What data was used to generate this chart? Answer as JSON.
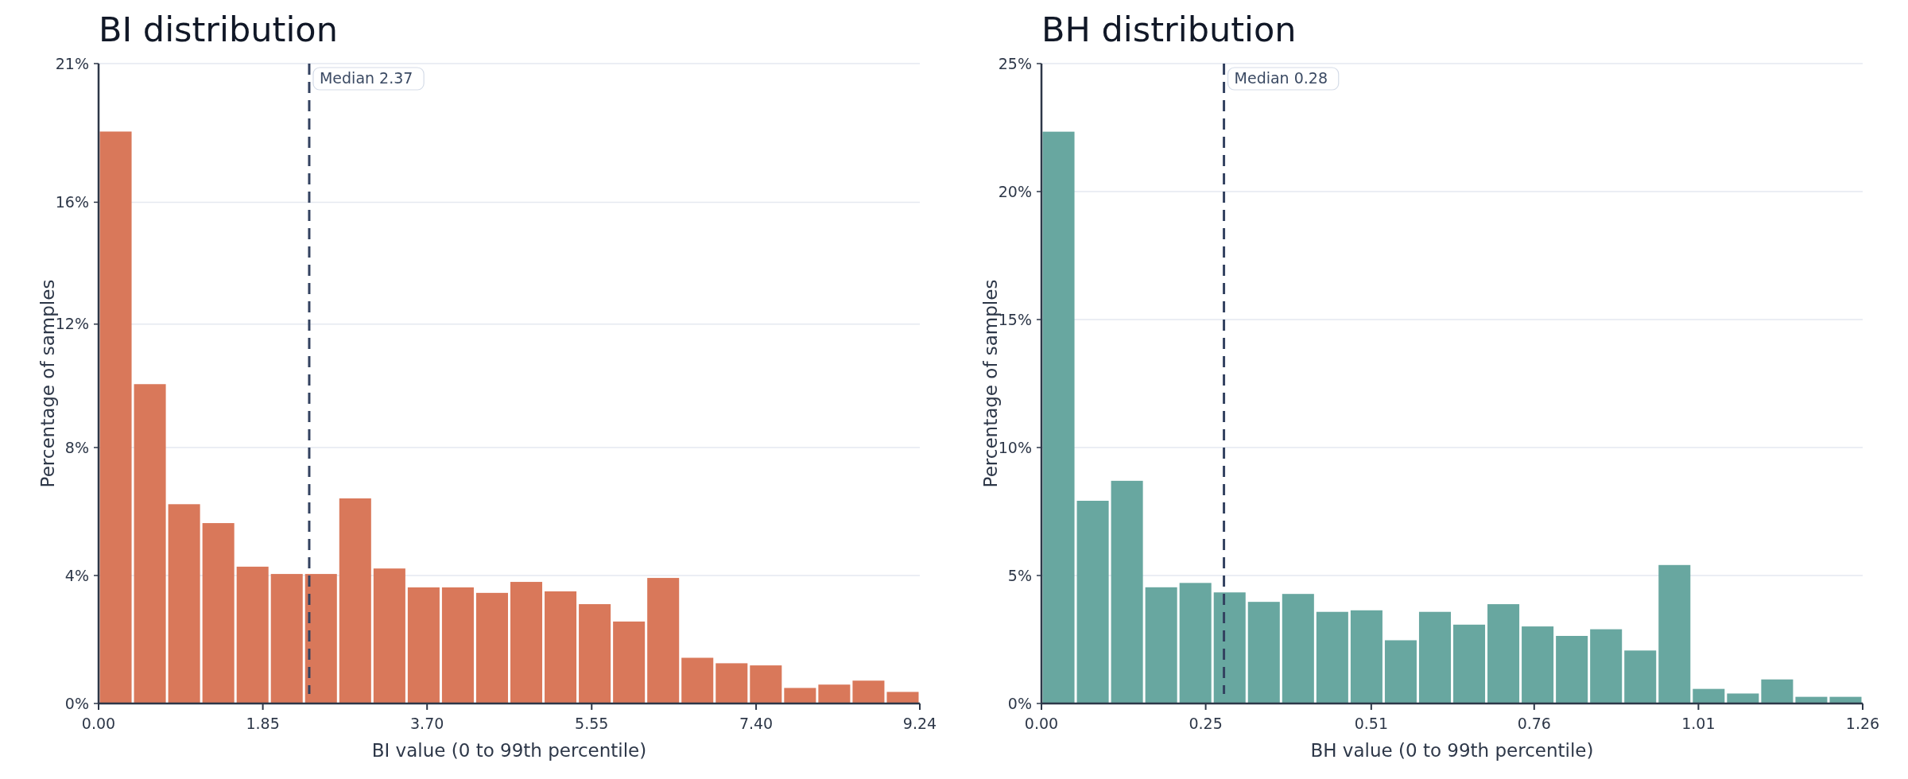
{
  "chart_data": [
    {
      "type": "histogram",
      "title": "BI distribution",
      "xlabel": "BI value (0 to 99th percentile)",
      "ylabel": "Percentage of samples",
      "color": "#d9785a",
      "grid": "y",
      "bins": [
        0,
        0.385,
        0.77,
        1.155,
        1.54,
        1.925,
        2.31,
        2.695,
        3.08,
        3.465,
        3.85,
        4.235,
        4.62,
        5.005,
        5.39,
        5.775,
        6.16,
        6.545,
        6.93,
        7.315,
        7.7,
        8.085,
        8.47,
        8.855,
        9.24
      ],
      "values": [
        18.77,
        10.48,
        6.54,
        5.92,
        4.49,
        4.25,
        4.25,
        6.73,
        4.43,
        3.81,
        3.81,
        3.63,
        3.99,
        3.68,
        3.26,
        2.69,
        4.12,
        1.5,
        1.32,
        1.25,
        0.51,
        0.62,
        0.75,
        0.38
      ],
      "xlim": [
        0,
        9.24
      ],
      "xticks": [
        {
          "value": 0,
          "label": "0.00"
        },
        {
          "value": 1.848,
          "label": "1.85"
        },
        {
          "value": 3.696,
          "label": "3.70"
        },
        {
          "value": 5.548,
          "label": "5.55"
        },
        {
          "value": 7.398,
          "label": "7.40"
        },
        9.24
      ],
      "ylim": [
        0,
        21
      ],
      "yticks": [
        {
          "value": 0,
          "label": "0%"
        },
        {
          "value": 4.2,
          "label": "4%"
        },
        {
          "value": 8.4,
          "label": "8%"
        },
        {
          "value": 12.45,
          "label": "12%"
        },
        {
          "value": 16.45,
          "label": "16%"
        },
        {
          "value": 21,
          "label": "21%"
        }
      ],
      "ref_lines": [
        {
          "axis": "x",
          "value": 2.37,
          "label": "Median 2.37",
          "color": "#334260",
          "line_style": "dashed"
        }
      ]
    },
    {
      "type": "histogram",
      "title": "BH distribution",
      "xlabel": "BH value (0 to 99th percentile)",
      "ylabel": "Percentage of samples",
      "color": "#68a7a0",
      "grid": "y",
      "bins": [
        0,
        0.0525,
        0.105,
        0.1575,
        0.21,
        0.2625,
        0.315,
        0.3675,
        0.42,
        0.4725,
        0.525,
        0.5775,
        0.63,
        0.6825,
        0.735,
        0.7875,
        0.84,
        0.8925,
        0.945,
        0.9975,
        1.05,
        1.1025,
        1.155,
        1.2075,
        1.26
      ],
      "values": [
        22.34,
        7.92,
        8.7,
        4.54,
        4.71,
        4.34,
        3.97,
        4.28,
        3.58,
        3.64,
        2.47,
        3.58,
        3.08,
        3.88,
        3.01,
        2.64,
        2.9,
        2.07,
        5.41,
        0.57,
        0.39,
        0.94,
        0.26,
        0.26
      ],
      "xlim": [
        0,
        1.26
      ],
      "xticks": [
        {
          "value": 0,
          "label": "0.00"
        },
        {
          "value": 0.252,
          "label": "0.25"
        },
        {
          "value": 0.506,
          "label": "0.51"
        },
        {
          "value": 0.756,
          "label": "0.76"
        },
        {
          "value": 1.008,
          "label": "1.01"
        },
        1.26
      ],
      "ylim": [
        0,
        25
      ],
      "yticks": [
        {
          "value": 0,
          "label": "0%"
        },
        {
          "value": 5,
          "label": "5%"
        },
        {
          "value": 10,
          "label": "10%"
        },
        {
          "value": 15,
          "label": "15%"
        },
        {
          "value": 20,
          "label": "20%"
        },
        {
          "value": 25,
          "label": "25%"
        }
      ],
      "ref_lines": [
        {
          "axis": "x",
          "value": 0.28,
          "label": "Median 0.28",
          "color": "#334260",
          "line_style": "dashed"
        }
      ]
    }
  ]
}
